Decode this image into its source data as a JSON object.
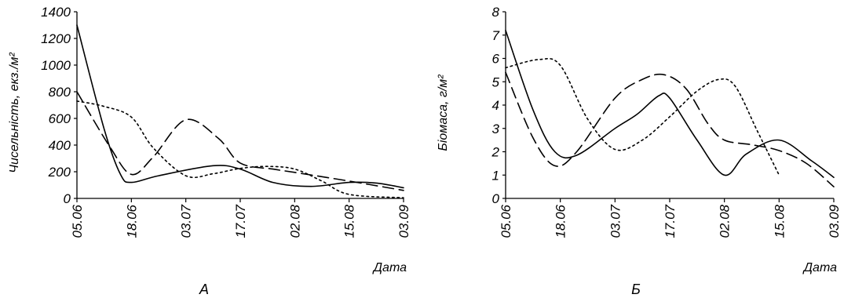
{
  "chart_data": [
    {
      "type": "line",
      "panel_label": "А",
      "ylabel": "Чисельність, екз./м²",
      "xlabel": "Дата",
      "ylim": [
        0,
        1400
      ],
      "yticks": [
        "0",
        "200",
        "400",
        "600",
        "800",
        "1000",
        "1200",
        "1400"
      ],
      "categories": [
        "05.06",
        "18.06",
        "03.07",
        "17.07",
        "02.08",
        "15.08",
        "03.09"
      ],
      "grid": false,
      "legend": "none",
      "series": [
        {
          "style": "solid",
          "x": [
            0,
            0.5,
            0.8,
            1.0,
            1.5,
            2.5,
            3.0,
            3.6,
            4.3,
            5.0,
            5.5,
            6.0
          ],
          "y": [
            1300,
            520,
            180,
            120,
            170,
            245,
            220,
            120,
            90,
            120,
            115,
            80
          ]
        },
        {
          "style": "dashed",
          "x": [
            0,
            0.6,
            1.0,
            1.4,
            2.0,
            2.6,
            3.0,
            3.6,
            4.0,
            5.0,
            6.0
          ],
          "y": [
            800,
            390,
            180,
            310,
            590,
            450,
            265,
            220,
            195,
            130,
            60
          ]
        },
        {
          "style": "dotted",
          "x": [
            0,
            0.5,
            1.0,
            1.4,
            2.0,
            2.5,
            3.0,
            3.5,
            4.0,
            4.5,
            5.0,
            6.0
          ],
          "y": [
            730,
            690,
            610,
            380,
            170,
            185,
            225,
            240,
            220,
            130,
            30,
            5
          ]
        }
      ]
    },
    {
      "type": "line",
      "panel_label": "Б",
      "ylabel": "Біомаса, г/м²",
      "xlabel": "Дата",
      "ylim": [
        0,
        8
      ],
      "yticks": [
        "0",
        "1",
        "2",
        "3",
        "4",
        "5",
        "6",
        "7",
        "8"
      ],
      "categories": [
        "05.06",
        "18.06",
        "03.07",
        "17.07",
        "02.08",
        "15.08",
        "03.09"
      ],
      "grid": false,
      "legend": "none",
      "series": [
        {
          "style": "solid",
          "x": [
            0,
            0.5,
            0.9,
            1.3,
            2.0,
            2.4,
            2.8,
            3.0,
            3.5,
            4.0,
            4.4,
            5.0,
            5.6,
            6.0
          ],
          "y": [
            7.2,
            3.8,
            2.0,
            1.85,
            3.0,
            3.6,
            4.4,
            4.3,
            2.5,
            1.0,
            1.9,
            2.5,
            1.6,
            0.9
          ]
        },
        {
          "style": "dashed",
          "x": [
            0,
            0.5,
            0.9,
            1.3,
            2.0,
            2.5,
            2.9,
            3.3,
            3.7,
            4.0,
            4.5,
            5.0,
            5.5,
            6.0
          ],
          "y": [
            5.4,
            2.6,
            1.4,
            2.0,
            4.3,
            5.1,
            5.3,
            4.7,
            3.2,
            2.5,
            2.3,
            2.05,
            1.5,
            0.5
          ]
        },
        {
          "style": "dotted",
          "x": [
            0,
            0.6,
            1.0,
            1.5,
            2.0,
            2.5,
            3.0,
            3.5,
            3.9,
            4.2,
            4.6,
            5.0
          ],
          "y": [
            5.6,
            5.95,
            5.7,
            3.4,
            2.1,
            2.5,
            3.5,
            4.6,
            5.1,
            4.8,
            2.9,
            1.0
          ]
        }
      ]
    }
  ]
}
